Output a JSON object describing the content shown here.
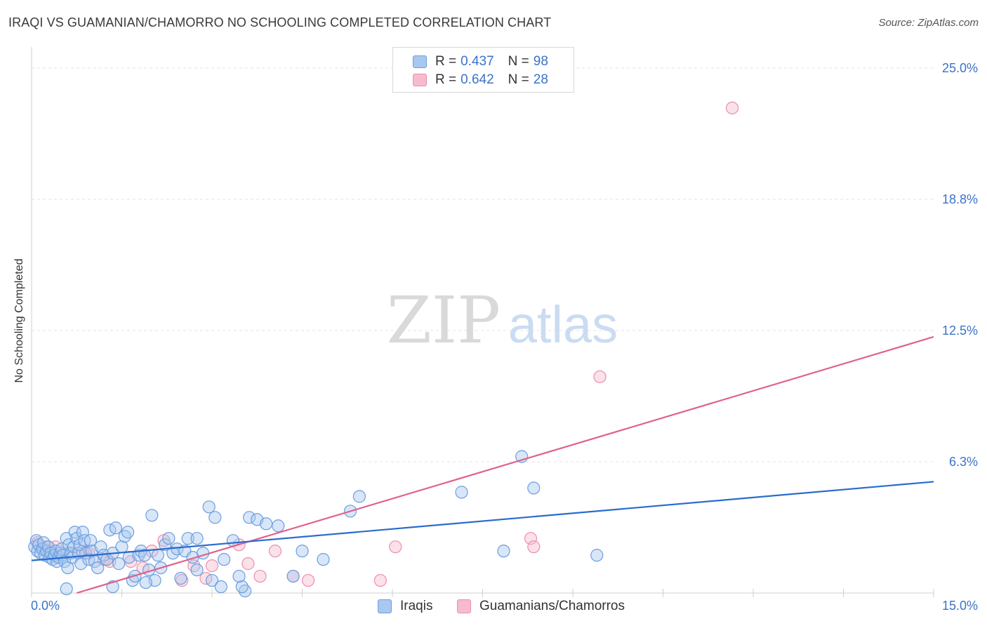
{
  "header": {
    "title": "IRAQI VS GUAMANIAN/CHAMORRO NO SCHOOLING COMPLETED CORRELATION CHART",
    "source": "Source: ZipAtlas.com"
  },
  "watermark": {
    "zip": "ZIP",
    "atlas": "atlas"
  },
  "legend": {
    "series": [
      {
        "r_label": "R =",
        "r_value": "0.437",
        "n_label": "N =",
        "n_value": "98"
      },
      {
        "r_label": "R =",
        "r_value": "0.642",
        "n_label": "N =",
        "n_value": "28"
      }
    ]
  },
  "bottom_legend": {
    "iraqis": "Iraqis",
    "guamanians": "Guamanians/Chamorros"
  },
  "colors": {
    "blue_fill": "#a9c8f0",
    "blue_stroke": "#6b9edf",
    "blue_line": "#2a6ccc",
    "pink_fill": "#f6bccd",
    "pink_stroke": "#ea8fac",
    "pink_line": "#e0618d",
    "axis_value": "#3a73c8",
    "grid": "#e3e3e3"
  },
  "chart_data": {
    "type": "scatter",
    "title": "IRAQI VS GUAMANIAN/CHAMORRO NO SCHOOLING COMPLETED CORRELATION CHART",
    "xlabel": "",
    "ylabel": "No Schooling Completed",
    "xlim": [
      0,
      15
    ],
    "ylim": [
      0,
      25
    ],
    "x_tick_labels": [
      {
        "value": 0,
        "label": "0.0%"
      },
      {
        "value": 15,
        "label": "15.0%"
      }
    ],
    "y_tick_labels": [
      {
        "value": 6.25,
        "label": "6.3%"
      },
      {
        "value": 12.5,
        "label": "12.5%"
      },
      {
        "value": 18.75,
        "label": "18.8%"
      },
      {
        "value": 25.0,
        "label": "25.0%"
      }
    ],
    "grid": true,
    "series": [
      {
        "name": "Iraqis",
        "r": 0.437,
        "n": 98,
        "trend": {
          "x": [
            0,
            15
          ],
          "y": [
            1.55,
            5.3
          ]
        },
        "points": [
          [
            0.05,
            2.2
          ],
          [
            0.08,
            2.5
          ],
          [
            0.1,
            2.0
          ],
          [
            0.12,
            2.3
          ],
          [
            0.15,
            1.9
          ],
          [
            0.18,
            2.1
          ],
          [
            0.2,
            2.4
          ],
          [
            0.22,
            1.8
          ],
          [
            0.25,
            2.0
          ],
          [
            0.28,
            2.2
          ],
          [
            0.3,
            1.7
          ],
          [
            0.32,
            1.9
          ],
          [
            0.35,
            1.6
          ],
          [
            0.38,
            1.8
          ],
          [
            0.4,
            2.0
          ],
          [
            0.42,
            1.5
          ],
          [
            0.45,
            1.7
          ],
          [
            0.48,
            1.9
          ],
          [
            0.5,
            2.1
          ],
          [
            0.52,
            1.8
          ],
          [
            0.55,
            1.5
          ],
          [
            0.58,
            2.6
          ],
          [
            0.6,
            1.2
          ],
          [
            0.62,
            2.3
          ],
          [
            0.65,
            1.9
          ],
          [
            0.68,
            1.7
          ],
          [
            0.7,
            2.2
          ],
          [
            0.72,
            2.9
          ],
          [
            0.75,
            2.6
          ],
          [
            0.78,
            1.9
          ],
          [
            0.8,
            2.3
          ],
          [
            0.82,
            1.4
          ],
          [
            0.85,
            2.9
          ],
          [
            0.88,
            2.5
          ],
          [
            0.9,
            1.9
          ],
          [
            0.95,
            1.6
          ],
          [
            0.98,
            2.5
          ],
          [
            1.0,
            2.0
          ],
          [
            1.05,
            1.5
          ],
          [
            1.1,
            1.2
          ],
          [
            1.15,
            2.2
          ],
          [
            1.2,
            1.8
          ],
          [
            1.25,
            1.6
          ],
          [
            1.3,
            3.0
          ],
          [
            1.35,
            1.9
          ],
          [
            1.4,
            3.1
          ],
          [
            1.45,
            1.4
          ],
          [
            1.5,
            2.2
          ],
          [
            1.55,
            2.7
          ],
          [
            1.6,
            2.9
          ],
          [
            1.62,
            1.7
          ],
          [
            1.68,
            0.6
          ],
          [
            1.72,
            0.8
          ],
          [
            1.78,
            1.8
          ],
          [
            1.82,
            2.0
          ],
          [
            1.88,
            1.8
          ],
          [
            1.95,
            1.1
          ],
          [
            2.0,
            3.7
          ],
          [
            2.05,
            0.6
          ],
          [
            2.1,
            1.8
          ],
          [
            2.15,
            1.2
          ],
          [
            2.22,
            2.3
          ],
          [
            2.28,
            2.6
          ],
          [
            2.35,
            1.9
          ],
          [
            2.42,
            2.1
          ],
          [
            2.48,
            0.7
          ],
          [
            2.55,
            2.0
          ],
          [
            2.6,
            2.6
          ],
          [
            2.68,
            1.7
          ],
          [
            2.75,
            1.1
          ],
          [
            2.85,
            1.9
          ],
          [
            2.95,
            4.1
          ],
          [
            3.0,
            0.6
          ],
          [
            3.05,
            3.6
          ],
          [
            3.15,
            0.3
          ],
          [
            3.2,
            1.6
          ],
          [
            3.35,
            2.5
          ],
          [
            3.55,
            0.1
          ],
          [
            3.62,
            3.6
          ],
          [
            3.75,
            3.5
          ],
          [
            3.9,
            3.3
          ],
          [
            4.1,
            3.2
          ],
          [
            4.35,
            0.8
          ],
          [
            4.5,
            2.0
          ],
          [
            4.85,
            1.6
          ],
          [
            5.3,
            3.9
          ],
          [
            5.45,
            4.6
          ],
          [
            7.15,
            4.8
          ],
          [
            7.85,
            2.0
          ],
          [
            8.15,
            6.5
          ],
          [
            8.35,
            5.0
          ],
          [
            9.4,
            1.8
          ],
          [
            1.35,
            0.3
          ],
          [
            1.9,
            0.5
          ],
          [
            2.75,
            2.6
          ],
          [
            3.5,
            0.3
          ],
          [
            3.45,
            0.8
          ],
          [
            0.58,
            0.2
          ]
        ]
      },
      {
        "name": "Guamanians/Chamorros",
        "r": 0.642,
        "n": 28,
        "trend": {
          "x": [
            0.75,
            15
          ],
          "y": [
            0.0,
            12.2
          ]
        },
        "points": [
          [
            0.1,
            2.4
          ],
          [
            0.25,
            2.2
          ],
          [
            0.4,
            2.2
          ],
          [
            0.6,
            1.9
          ],
          [
            0.85,
            2.0
          ],
          [
            0.95,
            1.9
          ],
          [
            1.2,
            1.6
          ],
          [
            1.3,
            1.5
          ],
          [
            1.65,
            1.5
          ],
          [
            1.85,
            1.2
          ],
          [
            2.0,
            2.0
          ],
          [
            2.2,
            2.5
          ],
          [
            2.5,
            0.6
          ],
          [
            2.7,
            1.3
          ],
          [
            2.9,
            0.7
          ],
          [
            3.0,
            1.3
          ],
          [
            3.45,
            2.3
          ],
          [
            3.6,
            1.4
          ],
          [
            3.8,
            0.8
          ],
          [
            4.05,
            2.0
          ],
          [
            4.35,
            0.8
          ],
          [
            4.6,
            0.6
          ],
          [
            5.8,
            0.6
          ],
          [
            6.05,
            2.2
          ],
          [
            8.3,
            2.6
          ],
          [
            8.35,
            2.2
          ],
          [
            9.45,
            10.3
          ],
          [
            11.65,
            23.1
          ]
        ]
      }
    ]
  }
}
